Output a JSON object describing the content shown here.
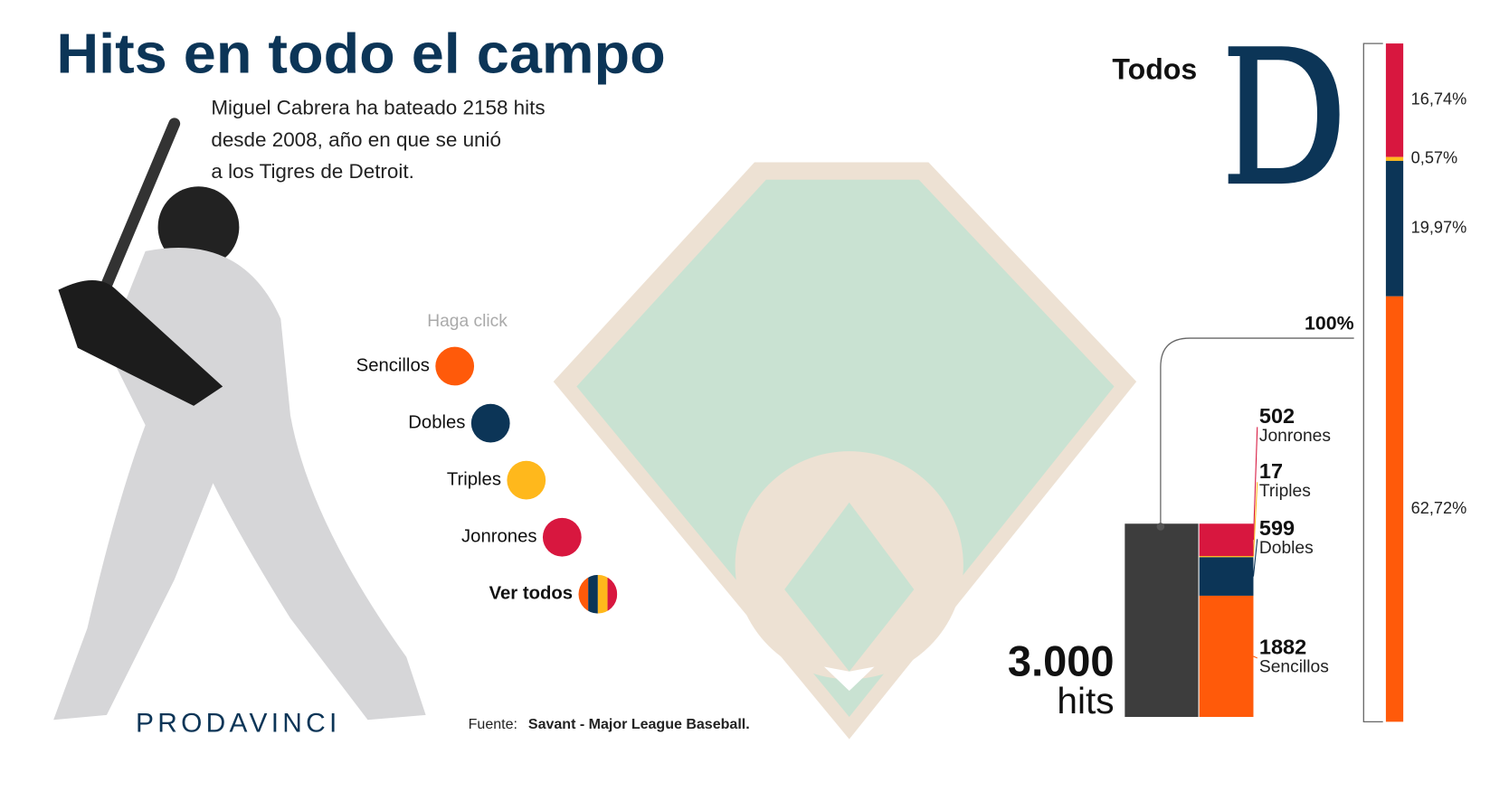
{
  "header": {
    "title": "Hits en todo el campo",
    "subtitle": [
      "Miguel Cabrera ha bateado 2158 hits",
      "desde 2008, año en que se unió",
      "a los Tigres de Detroit."
    ]
  },
  "legend": {
    "hint": "Haga click",
    "items": [
      {
        "label": "Sencillos",
        "color": "#ff5a0a"
      },
      {
        "label": "Dobles",
        "color": "#0c3557"
      },
      {
        "label": "Triples",
        "color": "#ffb81c"
      },
      {
        "label": "Jonrones",
        "color": "#d8173f"
      },
      {
        "label": "Ver todos"
      }
    ]
  },
  "source": {
    "prefix": "Fuente:",
    "text": "Savant - Major League Baseball."
  },
  "brand": "PRODAVINCI",
  "chart_data": [
    {
      "type": "percent_column",
      "title": "Todos",
      "total_label": "100%",
      "series": [
        {
          "color": "#d8173f",
          "values": [
            16.74
          ],
          "value_labels": [
            "16,74%"
          ]
        },
        {
          "color": "#ffb81c",
          "values": [
            0.57
          ],
          "value_labels": [
            "0,57%"
          ]
        },
        {
          "color": "#0c3557",
          "values": [
            19.97
          ],
          "value_labels": [
            "19,97%"
          ]
        },
        {
          "color": "#ff5a0a",
          "values": [
            62.72
          ],
          "value_labels": [
            "62,72%"
          ]
        }
      ]
    },
    {
      "type": "count_column",
      "total_label": "3.000",
      "total_unit": "hits",
      "total_color": "#3d3d3d",
      "categories": [
        "Jonrones",
        "Triples",
        "Dobles",
        "Sencillos"
      ],
      "values": [
        502,
        17,
        599,
        1882
      ],
      "colors": [
        "#d8173f",
        "#ffb81c",
        "#0c3557",
        "#ff5a0a"
      ]
    }
  ]
}
